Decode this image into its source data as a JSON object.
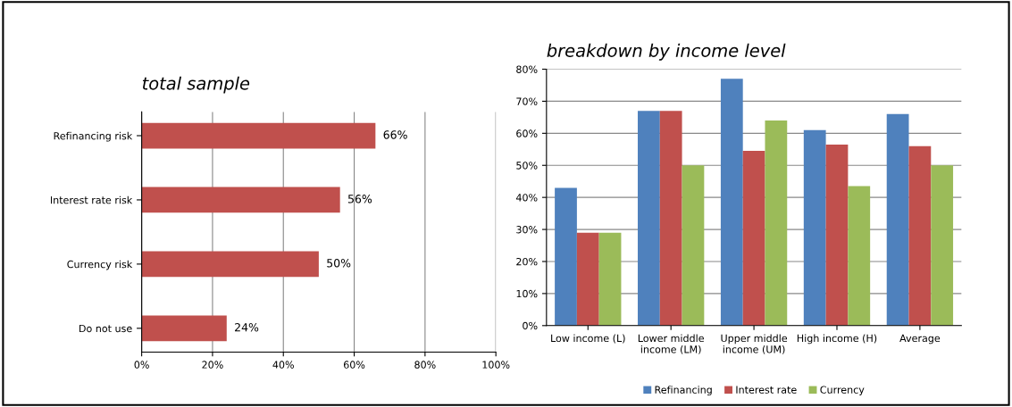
{
  "chart_data": [
    {
      "type": "bar",
      "title": "total sample",
      "orientation": "horizontal",
      "categories": [
        "Refinancing risk",
        "Interest rate risk",
        "Currency risk",
        "Do not use"
      ],
      "values": [
        66,
        56,
        50,
        24
      ],
      "color": "#c0504d",
      "value_labels": [
        "66%",
        "56%",
        "50%",
        "24%"
      ],
      "xlim": [
        0,
        100
      ],
      "xticks": [
        {
          "value": 0,
          "label": "0%"
        },
        {
          "value": 20,
          "label": "20%"
        },
        {
          "value": 40,
          "label": "40%"
        },
        {
          "value": 60,
          "label": "60%"
        },
        {
          "value": 80,
          "label": "80%"
        },
        {
          "value": 100,
          "label": "100%"
        }
      ],
      "grid": "x",
      "legend": false
    },
    {
      "type": "bar",
      "title": "breakdown by income level",
      "categories": [
        "Low income (L)",
        "Lower middle\nincome (LM)",
        "Upper middle\nincome (UM)",
        "High income (H)",
        "Average"
      ],
      "series": [
        {
          "name": "Refinancing",
          "color": "#4f81bd",
          "values": [
            43,
            67,
            77,
            61,
            66
          ]
        },
        {
          "name": "Interest rate",
          "color": "#c0504d",
          "values": [
            29,
            67,
            54.5,
            56.5,
            56
          ]
        },
        {
          "name": "Currency",
          "color": "#9bbb59",
          "values": [
            29,
            50,
            64,
            43.5,
            50
          ]
        }
      ],
      "ylim": [
        0,
        80
      ],
      "yticks": [
        {
          "value": 0,
          "label": "0%"
        },
        {
          "value": 10,
          "label": "10%"
        },
        {
          "value": 20,
          "label": "20%"
        },
        {
          "value": 30,
          "label": "30%"
        },
        {
          "value": 40,
          "label": "40%"
        },
        {
          "value": 50,
          "label": "50%"
        },
        {
          "value": 60,
          "label": "60%"
        },
        {
          "value": 70,
          "label": "70%"
        },
        {
          "value": 80,
          "label": "80%"
        }
      ],
      "grid": "y",
      "legend": "bottom"
    }
  ]
}
